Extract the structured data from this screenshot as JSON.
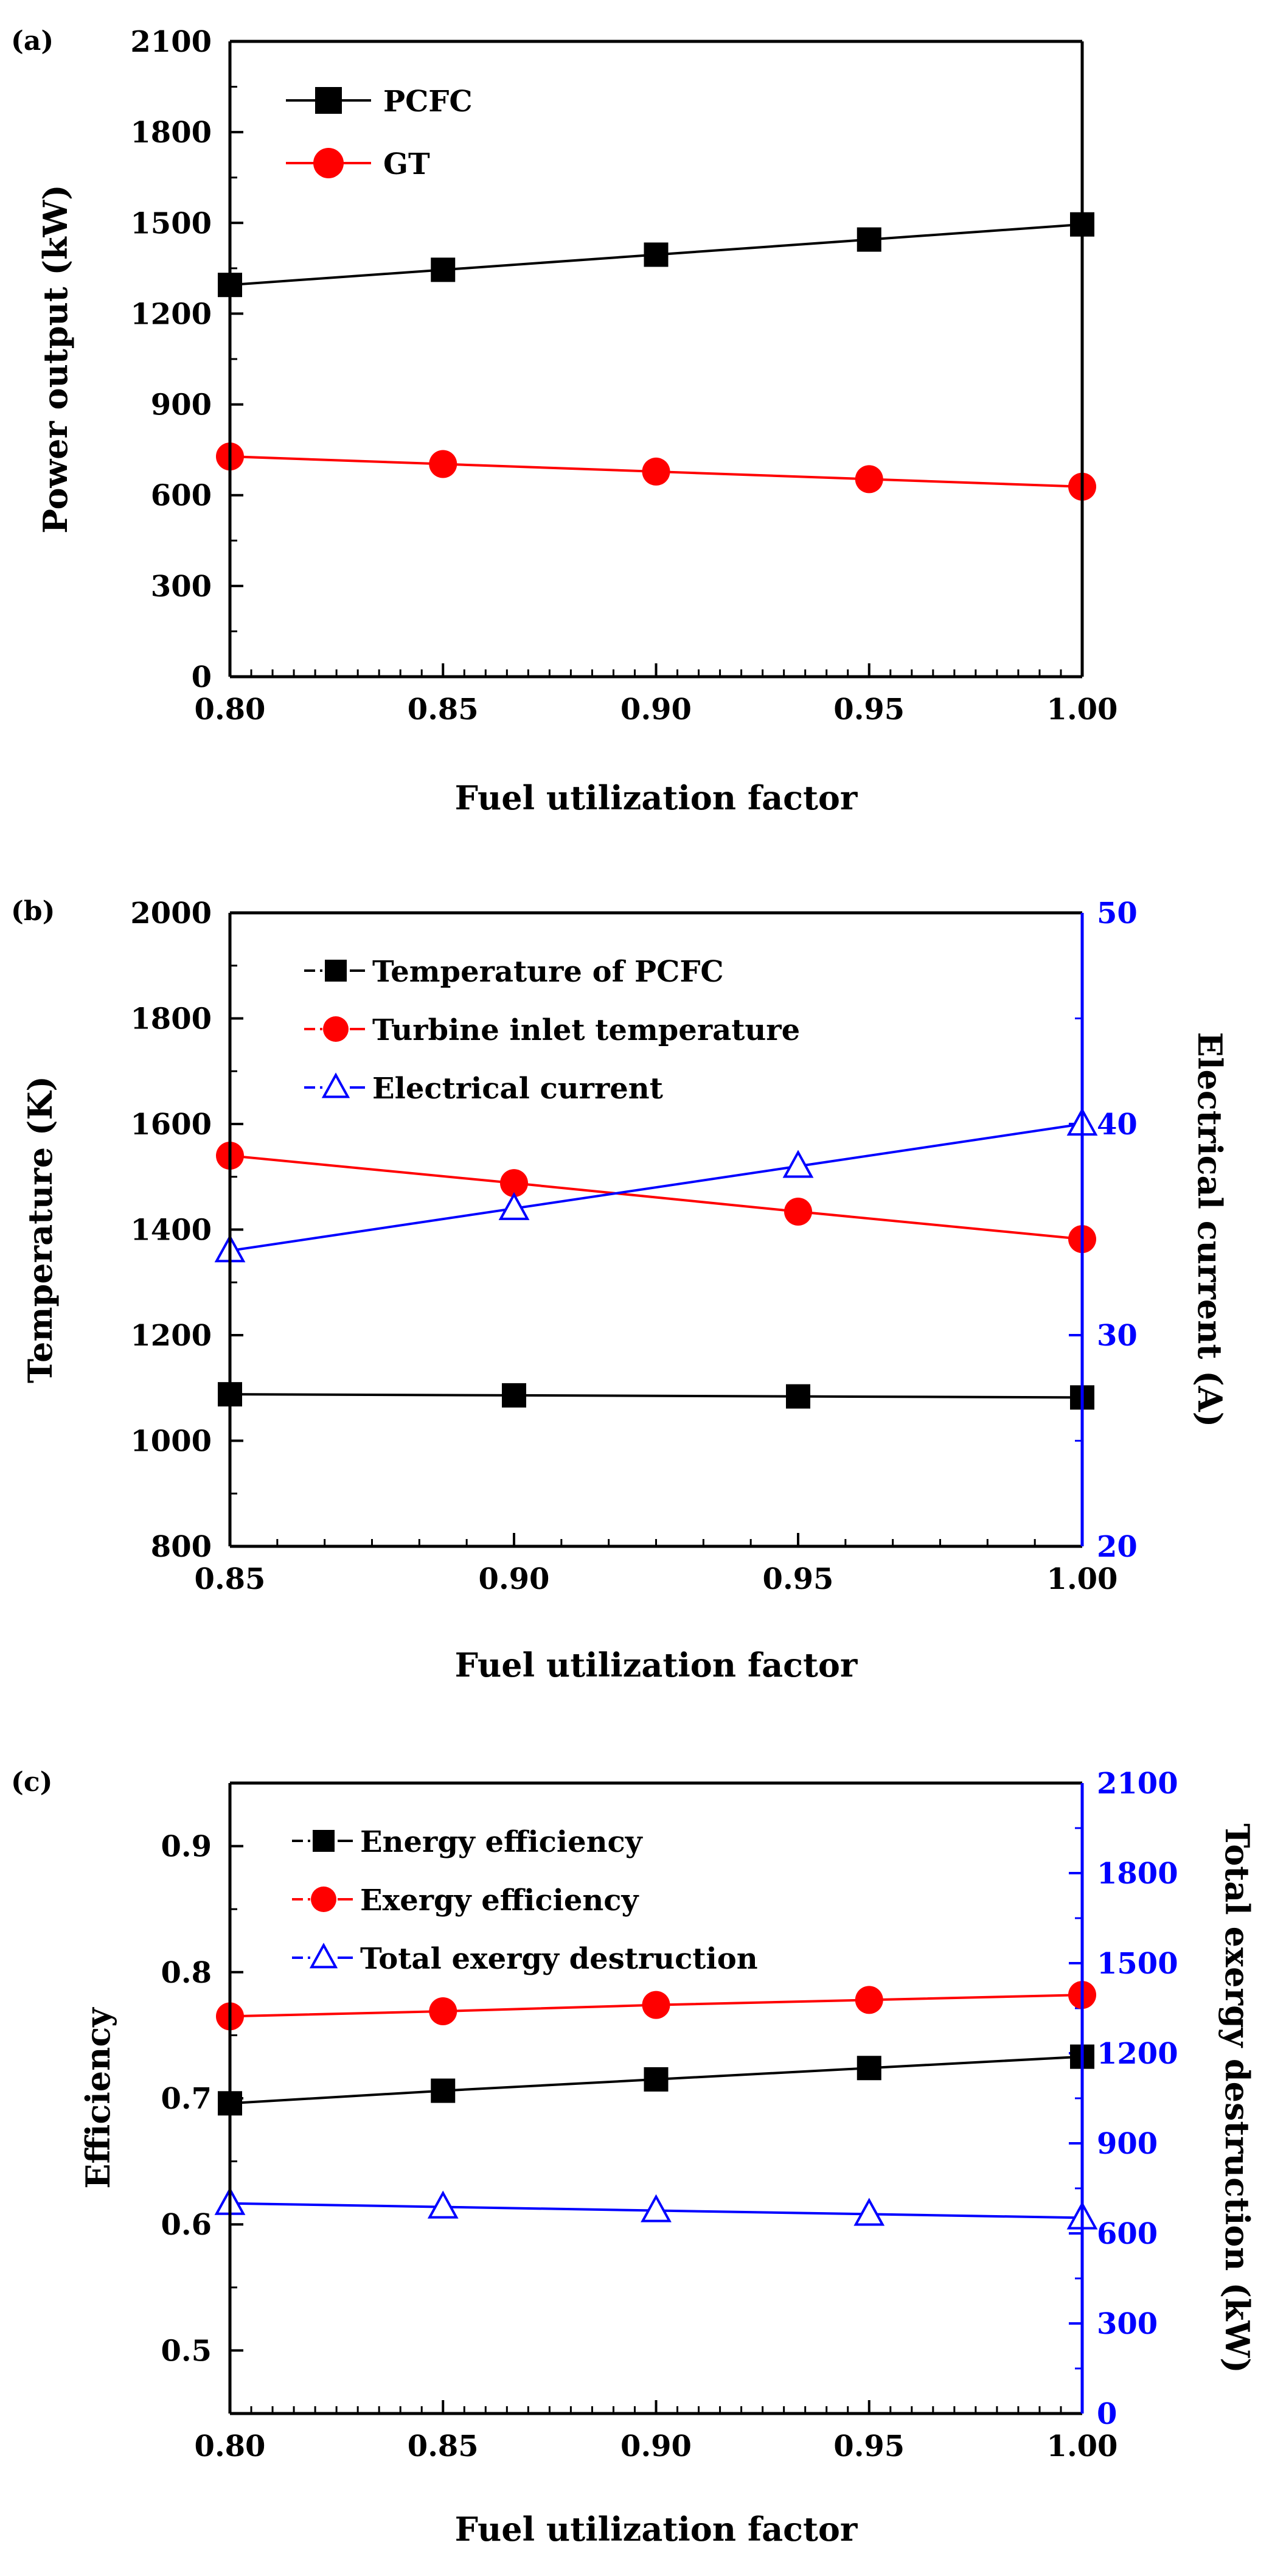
{
  "chart_data": [
    {
      "type": "line",
      "panel_label": "(a)",
      "title": "",
      "xlabel": "Fuel utilization factor",
      "ylabel": "Power output (kW)",
      "xlim": [
        0.8,
        1.0
      ],
      "ylim": [
        0,
        2100
      ],
      "xticks": [
        "0.80",
        "0.85",
        "0.90",
        "0.95",
        "1.00"
      ],
      "yticks": [
        "0",
        "300",
        "600",
        "900",
        "1200",
        "1500",
        "1800",
        "2100"
      ],
      "x": [
        0.8,
        0.85,
        0.9,
        0.95,
        1.0
      ],
      "series": [
        {
          "name": "PCFC",
          "axis": "left",
          "marker": "square",
          "color": "#000000",
          "values": [
            1295,
            1345,
            1395,
            1445,
            1495
          ]
        },
        {
          "name": "GT",
          "axis": "left",
          "marker": "circle",
          "color": "#ff0000",
          "values": [
            728,
            703,
            678,
            653,
            628
          ]
        }
      ],
      "legend": "top-left"
    },
    {
      "type": "line",
      "panel_label": "(b)",
      "title": "",
      "xlabel": "Fuel utilization factor",
      "ylabel": "Temperature (K)",
      "y2label": "Electrical current (A)",
      "xlim": [
        0.85,
        1.0
      ],
      "ylim": [
        800,
        2000
      ],
      "y2lim": [
        20,
        50
      ],
      "xticks": [
        "0.85",
        "0.90",
        "0.95",
        "1.00"
      ],
      "yticks": [
        "800",
        "1000",
        "1200",
        "1400",
        "1600",
        "1800",
        "2000"
      ],
      "y2ticks": [
        "20",
        "30",
        "40",
        "50"
      ],
      "x": [
        0.85,
        0.9,
        0.95,
        1.0
      ],
      "series": [
        {
          "name": "Temperature of PCFC",
          "axis": "left",
          "marker": "square",
          "color": "#000000",
          "values": [
            1088,
            1086,
            1084,
            1082
          ]
        },
        {
          "name": "Turbine inlet temperature",
          "axis": "left",
          "marker": "circle",
          "color": "#ff0000",
          "values": [
            1540,
            1488,
            1434,
            1382
          ]
        },
        {
          "name": "Electrical current",
          "axis": "right",
          "marker": "triangle-open",
          "color": "#0000ff",
          "values": [
            34.0,
            36.0,
            38.0,
            40.0
          ]
        }
      ],
      "legend": "top-left"
    },
    {
      "type": "line",
      "panel_label": "(c)",
      "title": "",
      "xlabel": "Fuel utilization factor",
      "ylabel": "Efficiency",
      "y2label": "Total exergy destruction (kW)",
      "xlim": [
        0.8,
        1.0
      ],
      "ylim": [
        0.45,
        0.95
      ],
      "y2lim": [
        0,
        2100
      ],
      "xticks": [
        "0.80",
        "0.85",
        "0.90",
        "0.95",
        "1.00"
      ],
      "yticks": [
        "0.5",
        "0.6",
        "0.7",
        "0.8",
        "0.9"
      ],
      "y2ticks": [
        "0",
        "300",
        "600",
        "900",
        "1200",
        "1500",
        "1800",
        "2100"
      ],
      "x": [
        0.8,
        0.85,
        0.9,
        0.95,
        1.0
      ],
      "series": [
        {
          "name": "Energy efficiency",
          "axis": "left",
          "marker": "square",
          "color": "#000000",
          "values": [
            0.696,
            0.706,
            0.715,
            0.724,
            0.733
          ]
        },
        {
          "name": "Exergy efficiency",
          "axis": "left",
          "marker": "circle",
          "color": "#ff0000",
          "values": [
            0.765,
            0.769,
            0.774,
            0.778,
            0.782
          ]
        },
        {
          "name": "Total exergy destruction",
          "axis": "right",
          "marker": "triangle-open",
          "color": "#0000ff",
          "values": [
            700,
            688,
            676,
            664,
            652
          ]
        }
      ],
      "legend": "top-left"
    }
  ]
}
